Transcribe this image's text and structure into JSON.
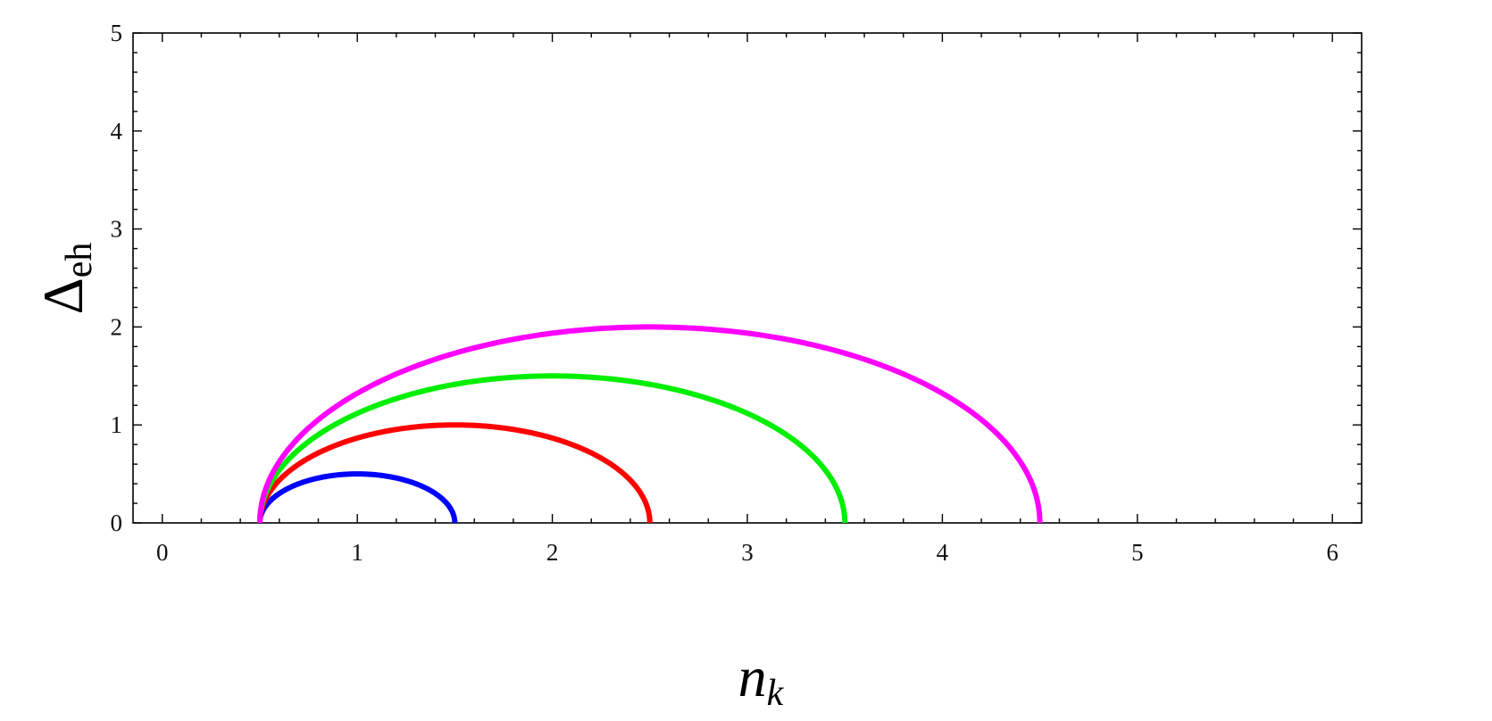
{
  "chart_data": {
    "type": "line",
    "title": "",
    "xlabel_base": "n",
    "xlabel_sub": "k",
    "ylabel_base": "Δ",
    "ylabel_sub": "eh",
    "xlim": [
      -0.15,
      6.15
    ],
    "ylim": [
      0,
      5
    ],
    "x_ticks": [
      "0",
      "1",
      "2",
      "3",
      "4",
      "5",
      "6"
    ],
    "y_ticks": [
      "0",
      "1",
      "2",
      "3",
      "4",
      "5"
    ],
    "grid": false,
    "legend": "none",
    "series": [
      {
        "color": "#0000ff",
        "curve": "semicircle",
        "center": [
          1.0,
          0
        ],
        "radius": 0.5
      },
      {
        "color": "#ff0000",
        "curve": "semicircle",
        "center": [
          1.5,
          0
        ],
        "radius": 1.0
      },
      {
        "color": "#00ee00",
        "curve": "semicircle",
        "center": [
          2.0,
          0
        ],
        "radius": 1.5
      },
      {
        "color": "#ff00ff",
        "curve": "semicircle",
        "center": [
          2.5,
          0
        ],
        "radius": 2.0
      }
    ]
  }
}
